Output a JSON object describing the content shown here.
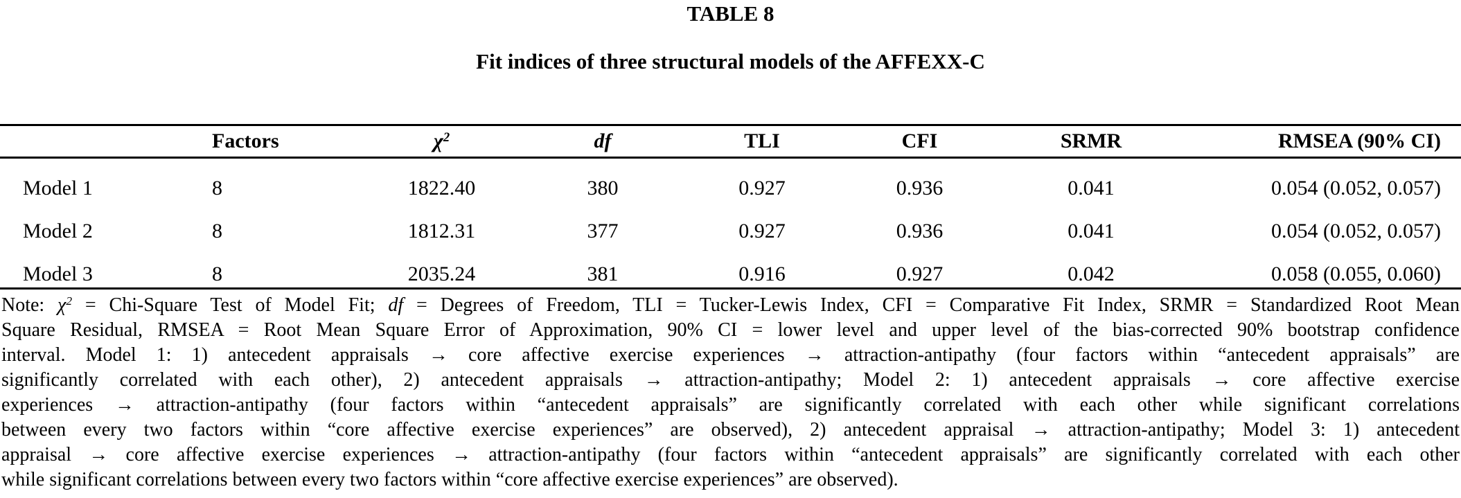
{
  "title": "TABLE 8",
  "subtitle": "Fit indices of three structural models of the AFFEXX-C",
  "table": {
    "headers": {
      "model": "",
      "factors": "Factors",
      "chi_symbol": "χ",
      "chi_sup": "2",
      "df": "df",
      "tli": "TLI",
      "cfi": "CFI",
      "srmr": "SRMR",
      "rmsea": "RMSEA (90% CI)"
    },
    "rows": [
      {
        "model": "Model 1",
        "factors": "8",
        "chi2": "1822.40",
        "df": "380",
        "tli": "0.927",
        "cfi": "0.936",
        "srmr": "0.041",
        "rmsea": "0.054 (0.052, 0.057)"
      },
      {
        "model": "Model 2",
        "factors": "8",
        "chi2": "1812.31",
        "df": "377",
        "tli": "0.927",
        "cfi": "0.936",
        "srmr": "0.041",
        "rmsea": "0.054 (0.052, 0.057)"
      },
      {
        "model": "Model 3",
        "factors": "8",
        "chi2": "2035.24",
        "df": "381",
        "tli": "0.916",
        "cfi": "0.927",
        "srmr": "0.042",
        "rmsea": "0.058 (0.055, 0.060)"
      }
    ]
  },
  "note": {
    "line1": {
      "prefix": "Note: ",
      "chi_symbol": "χ",
      "chi_sup": "2",
      "seg1": " = Chi-Square Test of Model Fit; ",
      "df": "df",
      "seg2": " = Degrees of Freedom, TLI = Tucker-Lewis Index, CFI = Comparative Fit Index, SRMR = Standardized Root Mean"
    },
    "lines": [
      "Square Residual, RMSEA = Root Mean Square Error of Approximation, 90% CI = lower level and upper level of the bias-corrected 90% bootstrap confidence",
      "interval. Model 1: 1) antecedent appraisals → core affective exercise experiences → attraction-antipathy (four factors within “antecedent appraisals” are",
      "significantly correlated with each other), 2) antecedent appraisals → attraction-antipathy; Model 2: 1) antecedent appraisals → core affective exercise",
      "experiences → attraction-antipathy (four factors within “antecedent appraisals” are significantly correlated with each other while significant correlations",
      "between every two factors within “core affective exercise experiences” are observed), 2) antecedent appraisal → attraction-antipathy; Model 3: 1) antecedent",
      "appraisal → core affective exercise experiences → attraction-antipathy (four factors within “antecedent appraisals” are significantly correlated with each other",
      "while significant correlations between every two factors within “core affective exercise experiences” are observed)."
    ]
  },
  "colors": {
    "text": "#000000",
    "background": "#ffffff",
    "rule": "#000000"
  }
}
